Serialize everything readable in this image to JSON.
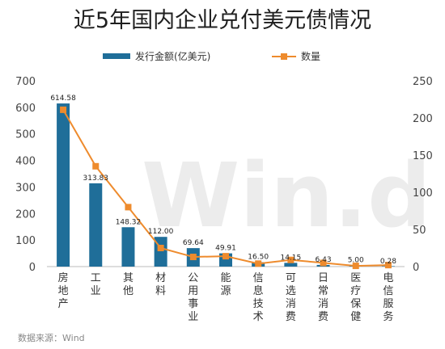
{
  "chart_data": {
    "type": "bar",
    "title": "近5年国内企业兑付美元债情况",
    "categories": [
      "房地产",
      "工业",
      "其他",
      "材料",
      "公用事业",
      "能源",
      "信息技术",
      "可选消费",
      "日常消费",
      "医疗保健",
      "电信服务"
    ],
    "series": [
      {
        "name": "发行金额(亿美元)",
        "type": "bar",
        "axis": "left",
        "color": "#1f6e99",
        "values": [
          614.58,
          313.83,
          148.32,
          112.0,
          69.64,
          49.91,
          16.5,
          14.15,
          6.43,
          5.0,
          0.28
        ],
        "labels": [
          "614.58",
          "313.83",
          "148.32",
          "112.00",
          "69.64",
          "49.91",
          "16.50",
          "14.15",
          "6.43",
          "5.00",
          "0.28"
        ]
      },
      {
        "name": "数量",
        "type": "line",
        "axis": "right",
        "color": "#ee8b2d",
        "values": [
          211,
          135,
          80,
          25,
          13,
          14,
          4,
          9,
          5,
          1,
          2
        ]
      }
    ],
    "y_left": {
      "ylim": [
        0,
        700
      ],
      "ticks": [
        "0",
        "100",
        "200",
        "300",
        "400",
        "500",
        "600",
        "700"
      ]
    },
    "y_right": {
      "ylim": [
        0,
        250
      ],
      "ticks": [
        "0",
        "50",
        "100",
        "150",
        "200",
        "250"
      ]
    },
    "legend_position": "top",
    "grid": false,
    "source": "数据来源：Wind",
    "watermark": "Win.d"
  }
}
